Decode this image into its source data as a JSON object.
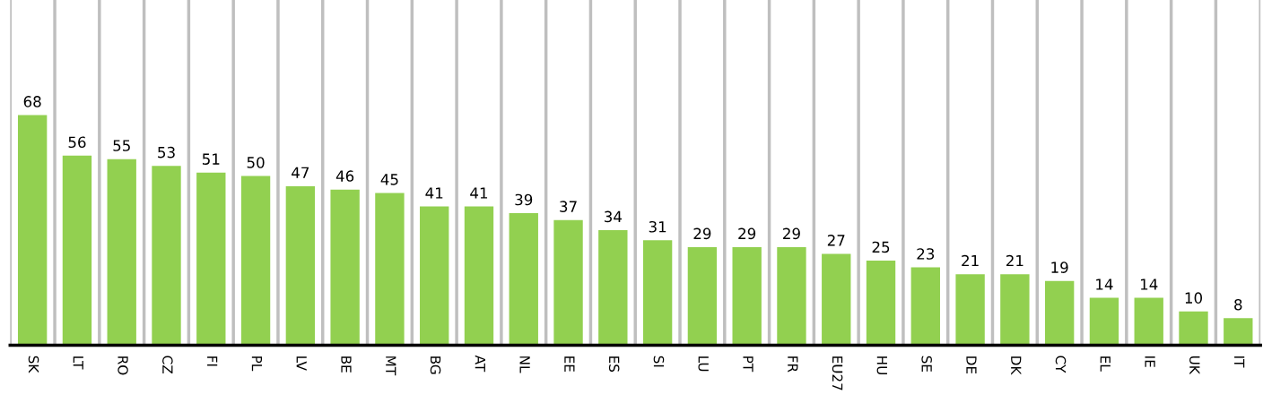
{
  "chart_data": {
    "type": "bar",
    "categories": [
      "SK",
      "LT",
      "RO",
      "CZ",
      "FI",
      "PL",
      "LV",
      "BE",
      "MT",
      "BG",
      "AT",
      "NL",
      "EE",
      "ES",
      "SI",
      "LU",
      "PT",
      "FR",
      "EU27",
      "HU",
      "SE",
      "DE",
      "DK",
      "CY",
      "EL",
      "IE",
      "UK",
      "IT"
    ],
    "values": [
      68,
      56,
      55,
      53,
      51,
      50,
      47,
      46,
      45,
      41,
      41,
      39,
      37,
      34,
      31,
      29,
      29,
      29,
      27,
      25,
      23,
      21,
      21,
      19,
      14,
      14,
      10,
      8
    ],
    "color": "#92d050",
    "data_labels": true,
    "grid": "x"
  }
}
